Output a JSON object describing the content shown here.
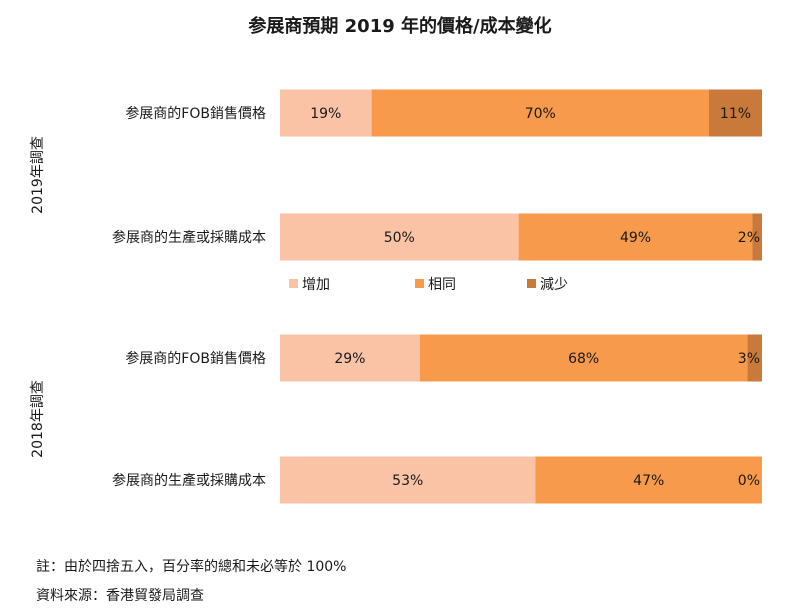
{
  "title": "参展商預期 2019 年的價格/成本變化",
  "note": "註：由於四捨五入，百分率的總和未必等於 100%",
  "source": "資料來源：香港貿發局調查",
  "colors": {
    "increase": "#fac3a6",
    "same": "#f79a4c",
    "decrease": "#c97939"
  },
  "chart_data": {
    "type": "bar",
    "orientation": "horizontal",
    "stacked": "100%",
    "groups": [
      {
        "label": "2019年調查",
        "categories": [
          "参展商的FOB銷售價格",
          "参展商的生產或採購成本"
        ],
        "series": [
          {
            "name": "增加",
            "values": [
              19,
              50
            ],
            "labels": [
              "19%",
              "50%"
            ]
          },
          {
            "name": "相同",
            "values": [
              70,
              49
            ],
            "labels": [
              "70%",
              "49%"
            ]
          },
          {
            "name": "減少",
            "values": [
              11,
              2
            ],
            "labels": [
              "11%",
              "2%"
            ]
          }
        ]
      },
      {
        "label": "2018年調查",
        "categories": [
          "参展商的FOB銷售價格",
          "参展商的生產或採購成本"
        ],
        "series": [
          {
            "name": "增加",
            "values": [
              29,
              53
            ],
            "labels": [
              "29%",
              "53%"
            ]
          },
          {
            "name": "相同",
            "values": [
              68,
              47
            ],
            "labels": [
              "68%",
              "47%"
            ]
          },
          {
            "name": "減少",
            "values": [
              3,
              0
            ],
            "labels": [
              "3%",
              "0%"
            ]
          }
        ]
      }
    ],
    "legend": [
      "增加",
      "相同",
      "減少"
    ],
    "legend_position": "middle",
    "grid": false
  }
}
